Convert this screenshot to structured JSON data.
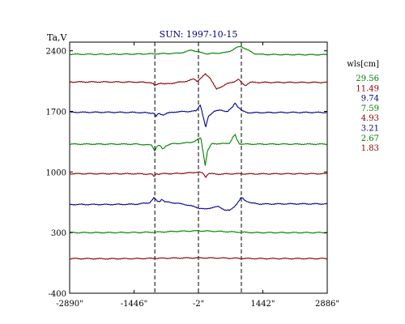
{
  "chart_data": {
    "type": "line",
    "title": "SUN: 1997-10-15",
    "ylabel": "Ta,V",
    "xlabel": "",
    "xlim": [
      -2890,
      2886
    ],
    "ylim": [
      -400,
      2500
    ],
    "x_tick_values": [
      -2890,
      -1446,
      -2,
      1442,
      2886
    ],
    "x_tick_labels": [
      "-2890\"",
      "-1446\"",
      "-2\"",
      "1442\"",
      "2886\""
    ],
    "y_tick_values": [
      2400,
      1700,
      1000,
      300,
      -400
    ],
    "y_tick_labels": [
      "2400",
      "1700",
      "1000",
      "300",
      "-400"
    ],
    "reference_lines_x": [
      -980,
      -2,
      960
    ],
    "legend_title": "wls[cm]",
    "legend_position": "right",
    "grid": false,
    "series": [
      {
        "name": "29.56",
        "color": "#008000",
        "baseline": 2360,
        "x": [
          -2890,
          -2000,
          -1400,
          -1000,
          -500,
          -300,
          -150,
          -2,
          200,
          400,
          600,
          700,
          800,
          870,
          950,
          1050,
          1150,
          1250,
          1400,
          2000,
          2886
        ],
        "y": [
          2360,
          2360,
          2362,
          2365,
          2370,
          2385,
          2410,
          2385,
          2365,
          2372,
          2378,
          2395,
          2420,
          2440,
          2450,
          2425,
          2395,
          2368,
          2358,
          2355,
          2355
        ]
      },
      {
        "name": "11.49",
        "color": "#8b0000",
        "baseline": 2040,
        "x": [
          -2890,
          -2000,
          -1400,
          -1100,
          -1020,
          -980,
          -900,
          -850,
          -760,
          -500,
          -250,
          -100,
          -30,
          60,
          150,
          250,
          400,
          600,
          800,
          900,
          960,
          1050,
          1150,
          2000,
          2886
        ],
        "y": [
          2040,
          2040,
          2038,
          2035,
          2020,
          1995,
          2020,
          2030,
          2015,
          2032,
          2050,
          2075,
          2050,
          2085,
          2130,
          2095,
          1955,
          2010,
          2045,
          2070,
          2030,
          2000,
          2035,
          2035,
          2035
        ]
      },
      {
        "name": "9.74",
        "color": "#00008b",
        "baseline": 1690,
        "x": [
          -2890,
          -2000,
          -1400,
          -1000,
          -950,
          -900,
          -800,
          -700,
          -500,
          -200,
          -50,
          40,
          100,
          160,
          220,
          350,
          500,
          650,
          760,
          820,
          880,
          1000,
          1100,
          2000,
          2886
        ],
        "y": [
          1690,
          1690,
          1688,
          1680,
          1640,
          1675,
          1660,
          1680,
          1695,
          1700,
          1705,
          1780,
          1650,
          1510,
          1640,
          1705,
          1712,
          1700,
          1745,
          1800,
          1755,
          1700,
          1685,
          1688,
          1688
        ]
      },
      {
        "name": "7.59",
        "color": "#008000",
        "baseline": 1320,
        "x": [
          -2890,
          -2000,
          -1400,
          -1050,
          -980,
          -930,
          -870,
          -800,
          -720,
          -600,
          -300,
          -100,
          50,
          110,
          150,
          200,
          300,
          500,
          700,
          770,
          820,
          870,
          920,
          1000,
          2000,
          2886
        ],
        "y": [
          1322,
          1322,
          1322,
          1310,
          1245,
          1300,
          1305,
          1262,
          1308,
          1325,
          1335,
          1350,
          1395,
          1210,
          1075,
          1240,
          1330,
          1325,
          1335,
          1400,
          1430,
          1365,
          1325,
          1322,
          1322,
          1322
        ]
      },
      {
        "name": "4.93",
        "color": "#8b0000",
        "baseline": 980,
        "x": [
          -2890,
          -2000,
          -1400,
          -1050,
          -990,
          -950,
          -900,
          -850,
          -500,
          -200,
          0,
          100,
          160,
          220,
          400,
          800,
          1200,
          2000,
          2886
        ],
        "y": [
          980,
          980,
          980,
          975,
          945,
          985,
          975,
          980,
          982,
          990,
          1000,
          985,
          940,
          985,
          975,
          980,
          978,
          980,
          980
        ]
      },
      {
        "name": "3.21",
        "color": "#00008b",
        "baseline": 625,
        "x": [
          -2890,
          -2000,
          -1400,
          -1100,
          -1000,
          -920,
          -870,
          -820,
          -760,
          -650,
          -500,
          -300,
          -100,
          0,
          150,
          300,
          450,
          600,
          700,
          800,
          900,
          960,
          1050,
          1200,
          1400,
          2000,
          2886
        ],
        "y": [
          625,
          625,
          628,
          645,
          700,
          660,
          660,
          690,
          655,
          650,
          640,
          625,
          600,
          585,
          570,
          590,
          600,
          560,
          555,
          600,
          660,
          705,
          670,
          640,
          630,
          632,
          632
        ]
      },
      {
        "name": "2.67",
        "color": "#008000",
        "baseline": 300,
        "x": [
          -2890,
          -2000,
          -1400,
          -1000,
          -800,
          -500,
          -200,
          0,
          300,
          600,
          900,
          1300,
          2000,
          2886
        ],
        "y": [
          300,
          300,
          302,
          305,
          308,
          315,
          318,
          320,
          316,
          312,
          305,
          300,
          300,
          300
        ]
      },
      {
        "name": "1.83",
        "color": "#8b0000",
        "baseline": 0,
        "x": [
          -2890,
          -2000,
          -1400,
          -1000,
          -500,
          0,
          500,
          900,
          1300,
          2000,
          2886
        ],
        "y": [
          0,
          -2,
          0,
          3,
          6,
          8,
          6,
          3,
          0,
          0,
          0
        ]
      }
    ]
  }
}
